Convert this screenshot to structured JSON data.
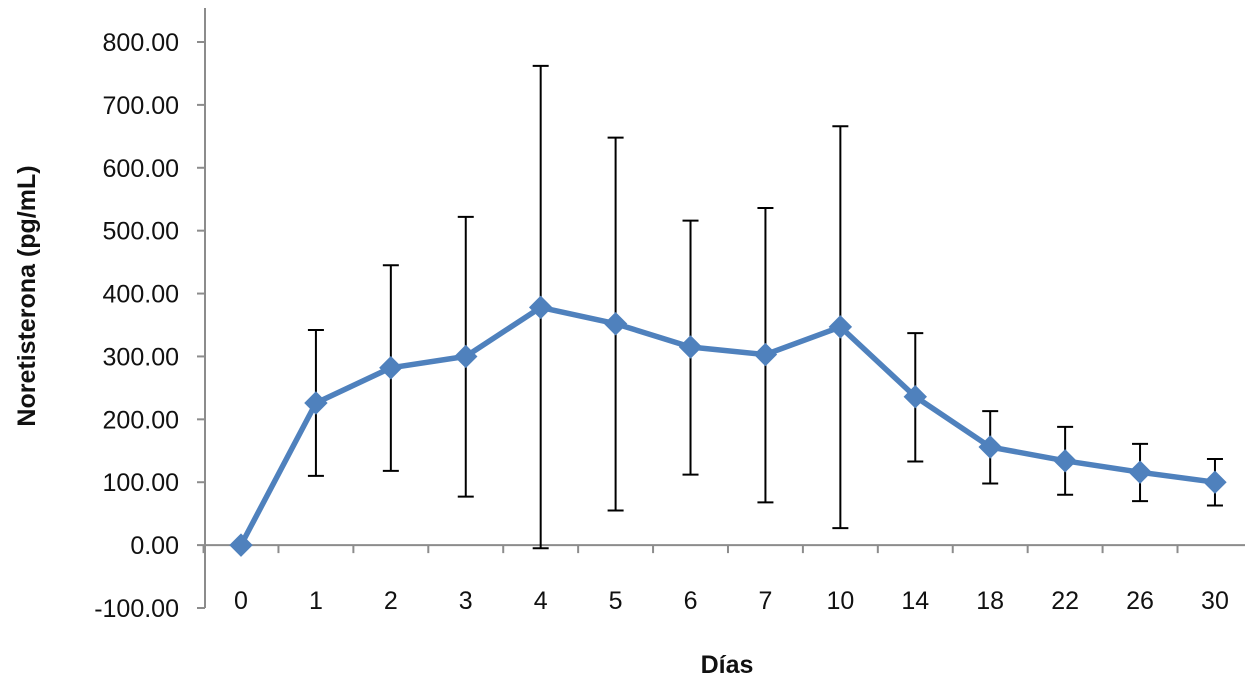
{
  "chart_data": {
    "type": "line",
    "title": "",
    "xlabel": "Días",
    "ylabel": "Noretisterona (pg/mL)",
    "categories": [
      "0",
      "1",
      "2",
      "3",
      "4",
      "5",
      "6",
      "7",
      "10",
      "14",
      "18",
      "22",
      "26",
      "30"
    ],
    "ylim": [
      -100,
      800
    ],
    "yticks": [
      -100,
      0,
      100,
      200,
      300,
      400,
      500,
      600,
      700,
      800
    ],
    "ytick_labels": [
      "-100.00",
      "0.00",
      "100.00",
      "200.00",
      "300.00",
      "400.00",
      "500.00",
      "600.00",
      "700.00",
      "800.00"
    ],
    "grid": false,
    "legend": "none",
    "series": [
      {
        "values": [
          0,
          226,
          282,
          300,
          378,
          352,
          315,
          303,
          347,
          236,
          156,
          134,
          116,
          100
        ],
        "error_low": [
          0,
          110,
          118,
          77,
          -5,
          55,
          112,
          68,
          27,
          133,
          98,
          80,
          70,
          63
        ],
        "error_high": [
          0,
          342,
          445,
          522,
          762,
          648,
          516,
          536,
          666,
          337,
          213,
          188,
          161,
          137
        ],
        "color": "#4F81BD",
        "marker": "diamond"
      }
    ]
  }
}
